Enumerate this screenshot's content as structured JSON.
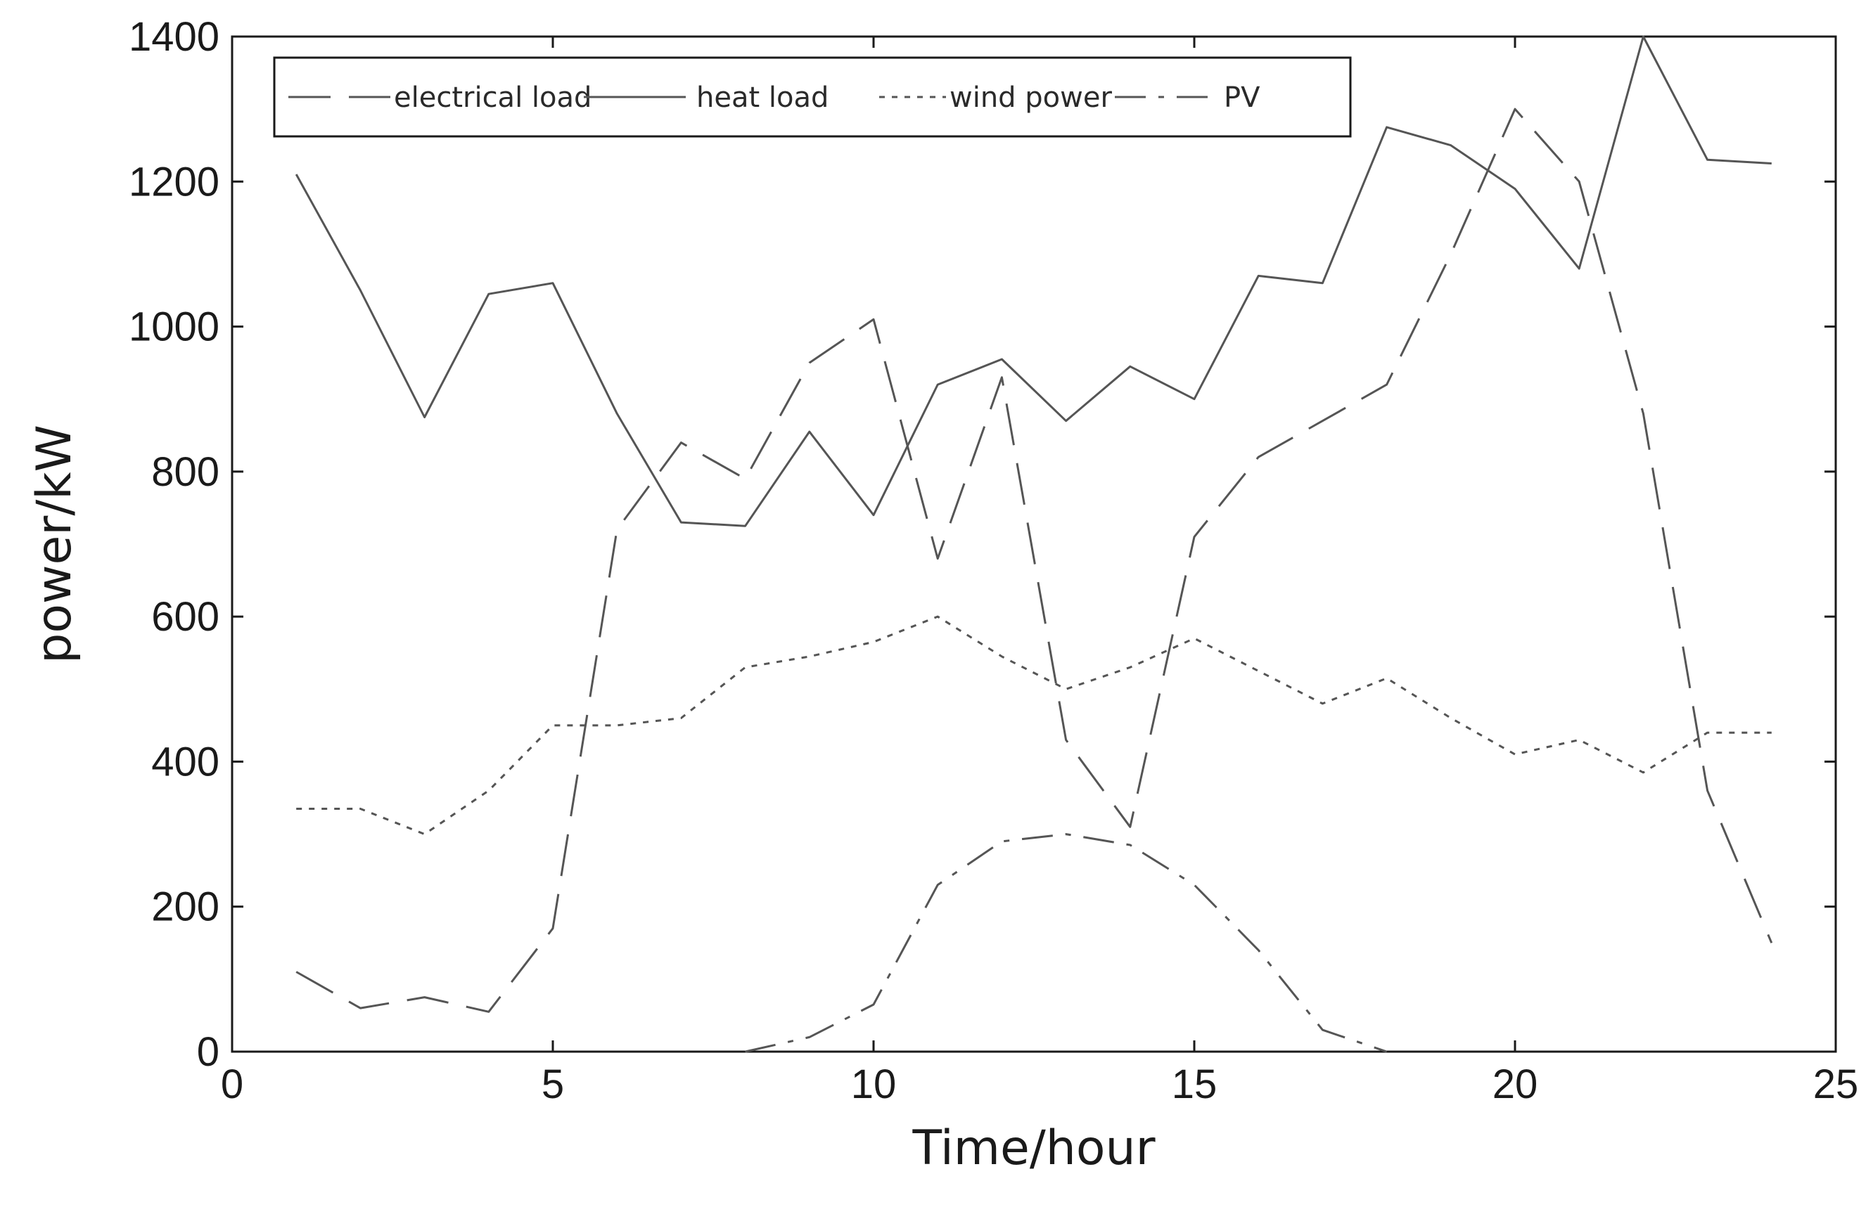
{
  "chart_data": {
    "type": "line",
    "title": "",
    "xlabel": "Time/hour",
    "ylabel": "power/kW",
    "xlim": [
      0,
      25
    ],
    "ylim": [
      0,
      1400
    ],
    "xticks": [
      0,
      5,
      10,
      15,
      20,
      25
    ],
    "yticks": [
      0,
      200,
      400,
      600,
      800,
      1000,
      1200,
      1400
    ],
    "grid": false,
    "legend_position": "top-left",
    "series": [
      {
        "name": "electrical load",
        "style": "long-dash",
        "color": "#555555",
        "x": [
          1,
          2,
          3,
          4,
          5,
          6,
          7,
          8,
          9,
          10,
          11,
          12,
          13,
          14,
          15,
          16,
          17,
          18,
          19,
          20,
          21,
          22,
          23,
          24
        ],
        "y": [
          110,
          60,
          75,
          55,
          170,
          720,
          840,
          790,
          950,
          1010,
          680,
          930,
          430,
          310,
          710,
          820,
          870,
          920,
          1100,
          1300,
          1200,
          880,
          360,
          150
        ]
      },
      {
        "name": "heat load",
        "style": "solid",
        "color": "#555555",
        "x": [
          1,
          2,
          3,
          4,
          5,
          6,
          7,
          8,
          9,
          10,
          11,
          12,
          13,
          14,
          15,
          16,
          17,
          18,
          19,
          20,
          21,
          22,
          23,
          24
        ],
        "y": [
          1210,
          1050,
          875,
          1045,
          1060,
          880,
          730,
          725,
          855,
          740,
          920,
          955,
          870,
          945,
          900,
          1070,
          1060,
          1275,
          1250,
          1190,
          1080,
          1400,
          1230,
          1225
        ]
      },
      {
        "name": "wind power",
        "style": "dotted",
        "color": "#555555",
        "x": [
          1,
          2,
          3,
          4,
          5,
          6,
          7,
          8,
          9,
          10,
          11,
          12,
          13,
          14,
          15,
          16,
          17,
          18,
          19,
          20,
          21,
          22,
          23,
          24
        ],
        "y": [
          335,
          335,
          300,
          360,
          450,
          450,
          460,
          530,
          545,
          565,
          600,
          545,
          500,
          530,
          570,
          525,
          480,
          515,
          460,
          410,
          430,
          385,
          440,
          440
        ]
      },
      {
        "name": "PV",
        "style": "dash-dot",
        "color": "#555555",
        "x": [
          8,
          9,
          10,
          11,
          12,
          13,
          14,
          15,
          16,
          17,
          18
        ],
        "y": [
          0,
          20,
          65,
          230,
          290,
          300,
          285,
          230,
          140,
          30,
          0
        ]
      }
    ]
  }
}
